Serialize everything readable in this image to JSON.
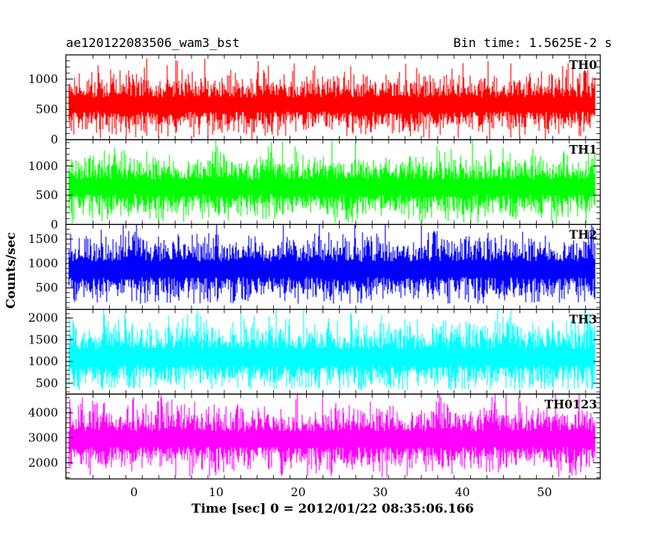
{
  "header": {
    "title_left": "ae120122083506_wam3_bst",
    "title_right": "Bin time: 1.5625E-2 s"
  },
  "chart_data": {
    "type": "line",
    "style": "histogram-step",
    "xlabel": "Time [sec] 0 = 2012/01/22 08:35:06.166",
    "ylabel": "Counts/sec",
    "xlim": [
      -8.3,
      56.8
    ],
    "x_ticks": [
      0,
      10,
      20,
      30,
      40,
      50
    ],
    "x_data_range": [
      -7.9,
      56.1
    ],
    "bin_time_s": 0.015625,
    "panels": [
      {
        "name": "TH0",
        "color": "#ff0000",
        "ylim": [
          0,
          1400
        ],
        "y_ticks": [
          0,
          500,
          1000
        ],
        "mean": 580,
        "noise": 210,
        "floor": 10
      },
      {
        "name": "TH1",
        "color": "#00ff00",
        "ylim": [
          0,
          1450
        ],
        "y_ticks": [
          0,
          500,
          1000
        ],
        "mean": 640,
        "noise": 230,
        "floor": 20
      },
      {
        "name": "TH2",
        "color": "#0000ff",
        "ylim": [
          60,
          1800
        ],
        "y_ticks": [
          500,
          1000,
          1500
        ],
        "mean": 880,
        "noise": 290,
        "floor": 170
      },
      {
        "name": "TH3",
        "color": "#00ffff",
        "ylim": [
          250,
          2200
        ],
        "y_ticks": [
          500,
          1000,
          1500,
          2000
        ],
        "mean": 1100,
        "noise": 340,
        "floor": 340
      },
      {
        "name": "TH0123",
        "color": "#ff00ff",
        "ylim": [
          1350,
          4750
        ],
        "y_ticks": [
          2000,
          3000,
          4000
        ],
        "mean": 2950,
        "noise": 560,
        "floor": 1420
      }
    ]
  }
}
